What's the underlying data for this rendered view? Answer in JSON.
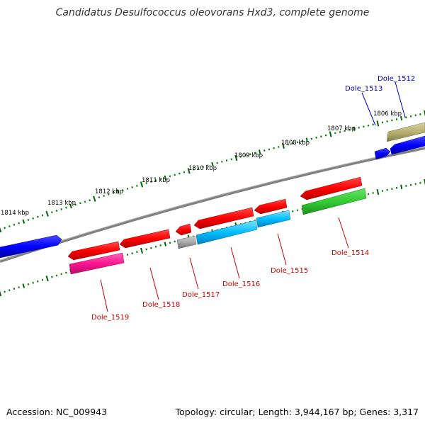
{
  "title": "Candidatus Desulfococcus oleovorans Hxd3, complete genome",
  "footer": {
    "accession": "Accession: NC_009943",
    "stats": "Topology: circular; Length: 3,944,167 bp; Genes: 3,317"
  },
  "kbp_labels": [
    "1814 kbp",
    "1813 kbp",
    "1812 kbp",
    "1811 kbp",
    "1810 kbp",
    "1809 kbp",
    "1808 kbp",
    "1807 kbp",
    "1806 kbp"
  ],
  "genes": [
    {
      "label": "Dole_1512",
      "color": "#0000cc"
    },
    {
      "label": "Dole_1513",
      "color": "#0000cc"
    },
    {
      "label": "Dole_1514",
      "color": "#cc0000"
    },
    {
      "label": "Dole_1515",
      "color": "#cc0000"
    },
    {
      "label": "Dole_1516",
      "color": "#cc0000"
    },
    {
      "label": "Dole_1517",
      "color": "#cc0000"
    },
    {
      "label": "Dole_1518",
      "color": "#cc0000"
    },
    {
      "label": "Dole_1519",
      "color": "#cc0000"
    }
  ],
  "colors": {
    "backbone": "#808080",
    "tick_major": "#006400",
    "tick_minor": "#008000",
    "gene_red": "#ff0000",
    "gene_blue": "#0000ff",
    "gene_cyan": "#00bfff",
    "gene_green": "#33cc33",
    "gene_magenta": "#ff1493",
    "gene_gray": "#a9a9a9",
    "gene_olive": "#b8b070"
  }
}
